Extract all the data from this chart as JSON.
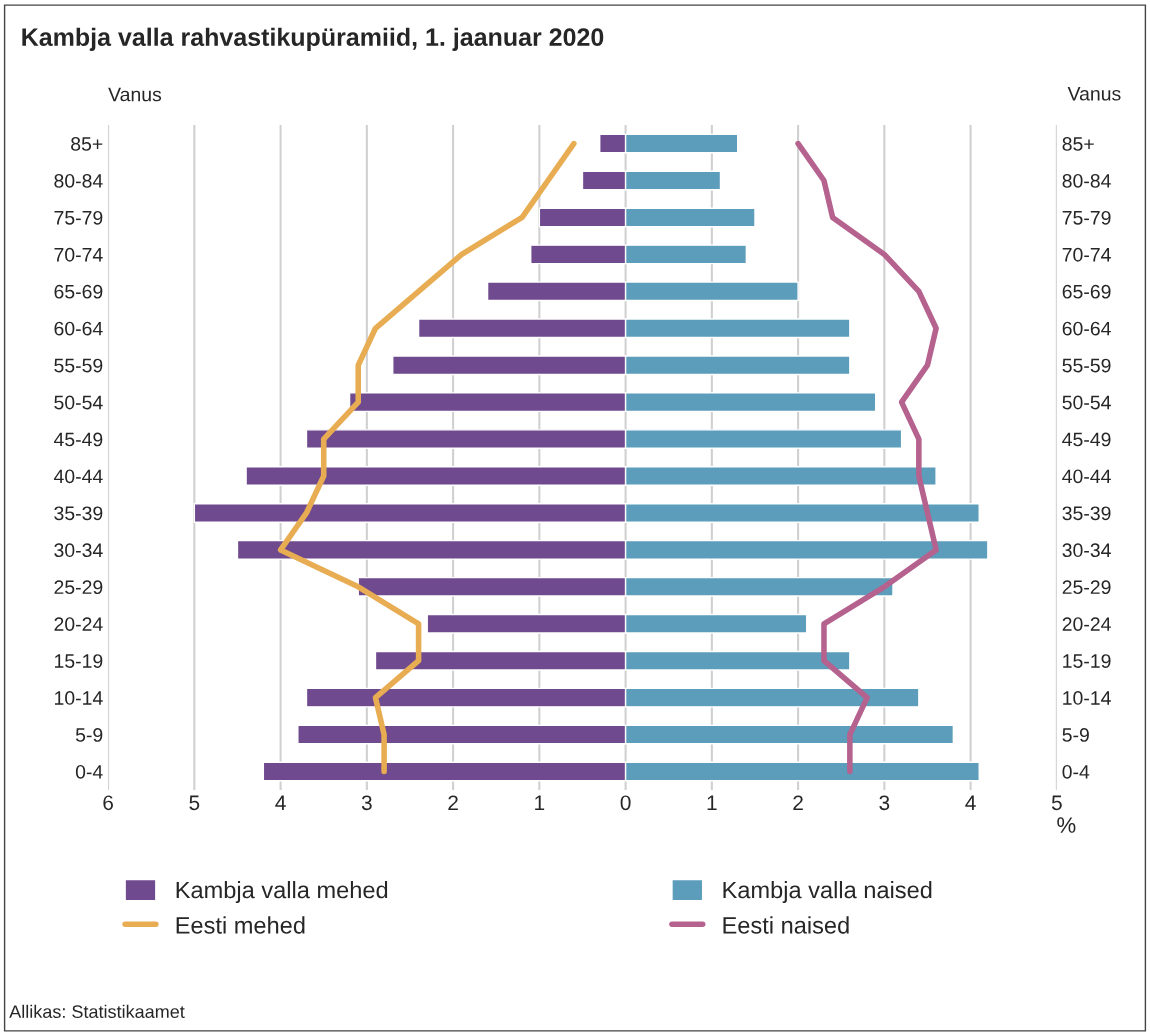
{
  "chart_data": {
    "type": "bar",
    "orientation": "horizontal",
    "stacked": true,
    "title": "Kambja valla rahvastikupüramiid, 1. jaanuar 2020",
    "ylabel": "Vanus",
    "y2label": "Vanus",
    "xlabel": "%",
    "categories": [
      "85+",
      "80-84",
      "75-79",
      "70-74",
      "65-69",
      "60-64",
      "55-59",
      "50-54",
      "45-49",
      "40-44",
      "35-39",
      "30-34",
      "25-29",
      "20-24",
      "15-19",
      "10-14",
      "5-9",
      "0-4"
    ],
    "series": [
      {
        "name": "Kambja valla mehed",
        "color": "#6f4a8e",
        "values": [
          -0.3,
          -0.5,
          -1.0,
          -1.1,
          -1.6,
          -2.4,
          -2.7,
          -3.2,
          -3.7,
          -4.4,
          -5.0,
          -4.5,
          -3.1,
          -2.3,
          -2.9,
          -3.7,
          -3.8,
          -4.2
        ]
      },
      {
        "name": "Eesti mehed",
        "type": "line",
        "color": "#e8ad52",
        "values": [
          -0.6,
          -0.9,
          -1.2,
          -1.9,
          -2.4,
          -2.9,
          -3.1,
          -3.1,
          -3.5,
          -3.5,
          -3.7,
          -4.0,
          -3.1,
          -2.4,
          -2.4,
          -2.9,
          -2.8,
          -2.8
        ]
      },
      {
        "name": "Kambja valla naised",
        "color": "#5b9dba",
        "values": [
          1.3,
          1.1,
          1.5,
          1.4,
          2.0,
          2.6,
          2.6,
          2.9,
          3.2,
          3.6,
          4.1,
          4.2,
          3.1,
          2.1,
          2.6,
          3.4,
          3.8,
          4.1
        ]
      },
      {
        "name": "Eesti naised",
        "type": "line",
        "color": "#b5628f",
        "values": [
          2.0,
          2.3,
          2.4,
          3.0,
          3.4,
          3.6,
          3.5,
          3.2,
          3.4,
          3.4,
          3.5,
          3.6,
          3.0,
          2.3,
          2.3,
          2.8,
          2.6,
          2.6
        ]
      }
    ],
    "xlim": [
      -6,
      5
    ],
    "xticks": [
      {
        "value": -6,
        "label": "6"
      },
      {
        "value": -5,
        "label": "5"
      },
      {
        "value": -4,
        "label": "4"
      },
      {
        "value": -3,
        "label": "3"
      },
      {
        "value": -2,
        "label": "2"
      },
      {
        "value": -1,
        "label": "1"
      },
      0,
      1,
      2,
      3,
      4,
      5
    ],
    "grid": "x",
    "legend": "bottom",
    "annotations": [
      "Allikas: Statistikaamet"
    ]
  }
}
